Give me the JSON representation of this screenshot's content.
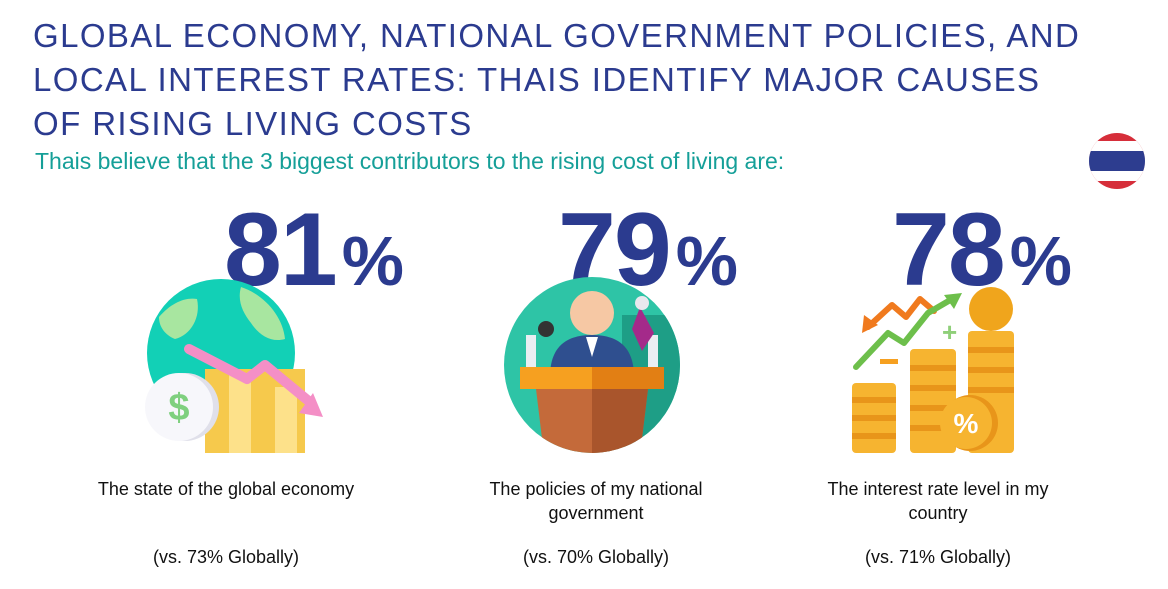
{
  "title": "GLOBAL ECONOMY, NATIONAL GOVERNMENT POLICIES, AND LOCAL INTEREST RATES: THAIS IDENTIFY MAJOR CAUSES OF RISING LIVING COSTS",
  "subtitle": "Thais believe that the 3 biggest contributors to the rising cost of living are:",
  "flag": {
    "icon": "thailand-flag-icon",
    "colors": [
      "#d62e3a",
      "#ffffff",
      "#2d3d8f"
    ]
  },
  "accent_color": "#2b3b8f",
  "subtitle_color": "#159f98",
  "items": [
    {
      "value": "81",
      "unit": "%",
      "label": "The state of the global economy",
      "comparison": "(vs. 73% Globally)",
      "icon": "globe-declining-economy-icon"
    },
    {
      "value": "79",
      "unit": "%",
      "label": "The policies of my national government",
      "comparison": "(vs. 70% Globally)",
      "icon": "politician-podium-icon"
    },
    {
      "value": "78",
      "unit": "%",
      "label": "The interest rate level in my country",
      "comparison": "(vs. 71% Globally)",
      "icon": "coin-stacks-interest-icon"
    }
  ]
}
